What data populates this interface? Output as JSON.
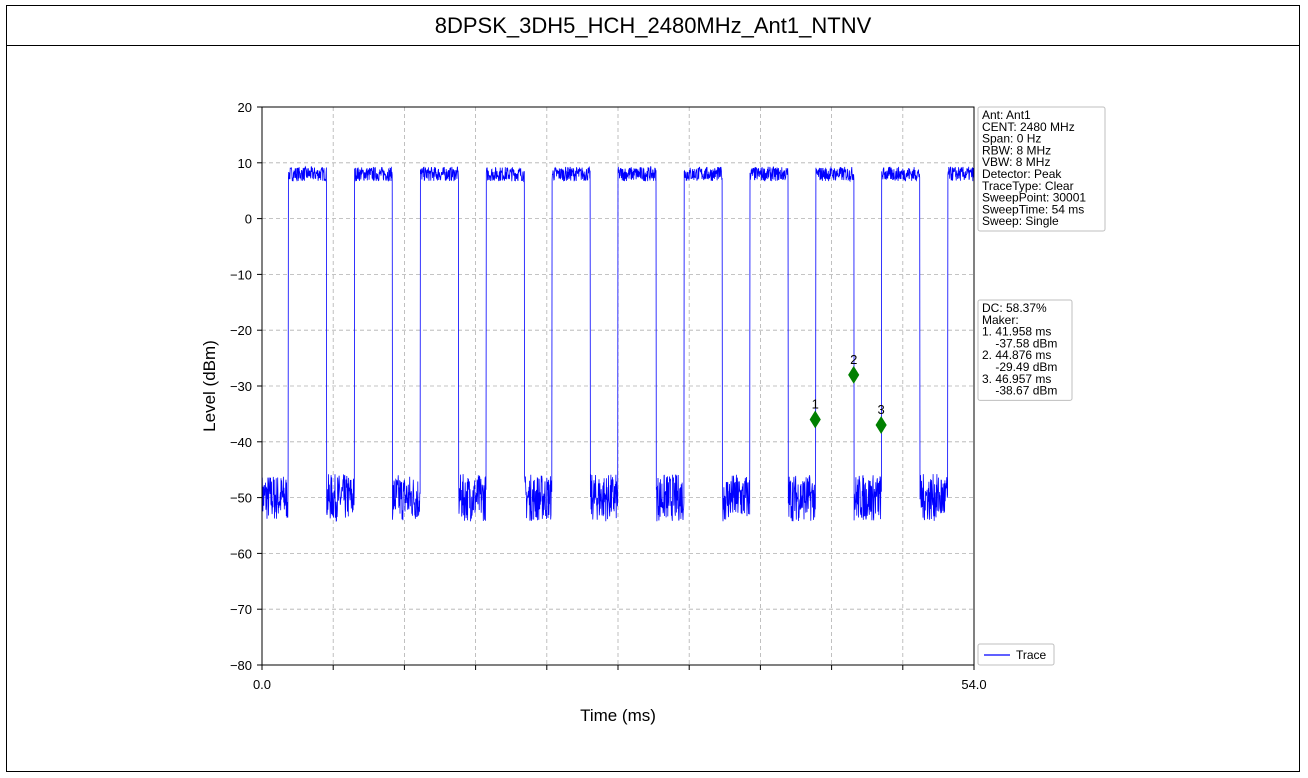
{
  "chart_data": {
    "type": "line",
    "title": "8DPSK_3DH5_HCH_2480MHz_Ant1_NTNV",
    "xlabel": "Time (ms)",
    "ylabel": "Level (dBm)",
    "xlim": [
      0.0,
      54.0
    ],
    "ylim": [
      -80,
      20
    ],
    "x_tick_labels": [
      "0.0",
      "54.0"
    ],
    "y_ticks": [
      20,
      10,
      0,
      -10,
      -20,
      -30,
      -40,
      -50,
      -60,
      -70,
      -80
    ],
    "y_tick_labels": [
      "20",
      "10",
      "0",
      "−10",
      "−20",
      "−30",
      "−40",
      "−50",
      "−60",
      "−70",
      "−80"
    ],
    "grid": true,
    "legend_position": "bottom-right",
    "series": [
      {
        "name": "Trace",
        "color": "#0000ff",
        "pulse_period_ms": 5.0,
        "pulse_on_ms": 2.9,
        "first_rise_ms": 2.0,
        "on_level_dBm": 8,
        "off_level_dBm": -50
      }
    ],
    "markers": [
      {
        "label": "1",
        "x": 41.958,
        "y": -36.0
      },
      {
        "label": "2",
        "x": 44.876,
        "y": -28.0
      },
      {
        "label": "3",
        "x": 46.957,
        "y": -37.0
      }
    ],
    "marker_color": "#008000",
    "settings_box": [
      "Ant: Ant1",
      "CENT: 2480 MHz",
      "Span: 0 Hz",
      "RBW: 8 MHz",
      "VBW: 8 MHz",
      "Detector: Peak",
      "TraceType: Clear",
      "SweepPoint: 30001",
      "SweepTime: 54 ms",
      "Sweep: Single"
    ],
    "marker_box": [
      "DC: 58.37%",
      "Maker:",
      "1. 41.958 ms",
      "    -37.58 dBm",
      "2. 44.876 ms",
      "    -29.49 dBm",
      "3. 46.957 ms",
      "    -38.67 dBm"
    ]
  }
}
